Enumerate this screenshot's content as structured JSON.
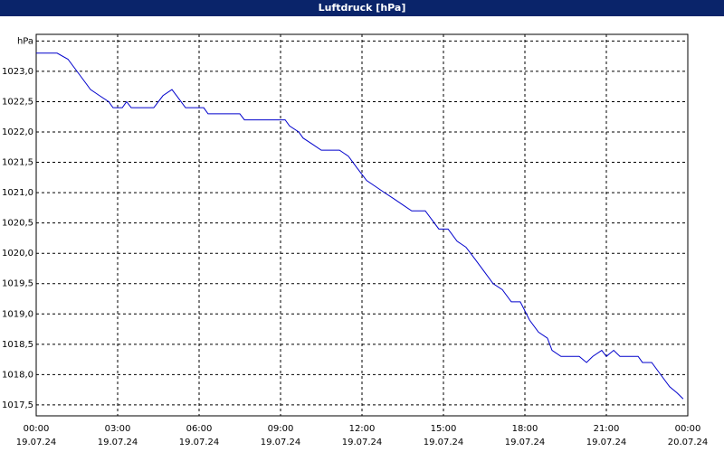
{
  "chart_data": {
    "type": "line",
    "title": "Luftdruck [hPa]",
    "x": [
      0,
      0.77,
      1.17,
      1.67,
      2,
      2.33,
      2.67,
      2.83,
      3.17,
      3.33,
      3.5,
      4.33,
      4.67,
      5,
      5.17,
      5.5,
      6.17,
      6.33,
      7.5,
      7.67,
      9.17,
      9.33,
      9.67,
      9.83,
      10.17,
      10.5,
      11.17,
      11.5,
      11.83,
      12.17,
      12.5,
      12.83,
      13.17,
      13.5,
      13.83,
      14.33,
      14.83,
      15.17,
      15.5,
      15.83,
      16.17,
      16.5,
      16.83,
      17.17,
      17.5,
      17.83,
      18.17,
      18.5,
      18.83,
      19,
      19.33,
      20,
      20.27,
      20.5,
      20.83,
      21,
      21.27,
      21.5,
      22.17,
      22.33,
      22.67,
      23,
      23.33,
      23.6,
      23.83
    ],
    "series": [
      {
        "color": "#0000cc",
        "values": [
          1023.3,
          1023.3,
          1023.2,
          1022.9,
          1022.7,
          1022.6,
          1022.5,
          1022.4,
          1022.4,
          1022.5,
          1022.4,
          1022.4,
          1022.6,
          1022.7,
          1022.6,
          1022.4,
          1022.4,
          1022.3,
          1022.3,
          1022.2,
          1022.2,
          1022.1,
          1022.0,
          1021.9,
          1021.8,
          1021.7,
          1021.7,
          1021.6,
          1021.4,
          1021.2,
          1021.1,
          1021.0,
          1020.9,
          1020.8,
          1020.7,
          1020.7,
          1020.4,
          1020.4,
          1020.2,
          1020.1,
          1019.9,
          1019.7,
          1019.5,
          1019.4,
          1019.2,
          1019.2,
          1018.9,
          1018.7,
          1018.6,
          1018.4,
          1018.3,
          1018.3,
          1018.2,
          1018.3,
          1018.4,
          1018.3,
          1018.4,
          1018.3,
          1018.3,
          1018.2,
          1018.2,
          1018.0,
          1017.8,
          1017.7,
          1017.6
        ]
      }
    ],
    "xlim": [
      0,
      24
    ],
    "xticks": [
      {
        "value": 0,
        "label": "00:00"
      },
      {
        "value": 3,
        "label": "03:00"
      },
      {
        "value": 6,
        "label": "06:00"
      },
      {
        "value": 9,
        "label": "09:00"
      },
      {
        "value": 12,
        "label": "12:00"
      },
      {
        "value": 15,
        "label": "15:00"
      },
      {
        "value": 18,
        "label": "18:00"
      },
      {
        "value": 21,
        "label": "21:00"
      },
      {
        "value": 24,
        "label": "00:00"
      }
    ],
    "xtick_dates": [
      "19.07.24",
      "19.07.24",
      "19.07.24",
      "19.07.24",
      "19.07.24",
      "19.07.24",
      "19.07.24",
      "19.07.24",
      "20.07.24"
    ],
    "ylim": [
      1017.32,
      1023.61
    ],
    "yticks": [
      {
        "value": 1017.5,
        "label": "1017,5"
      },
      {
        "value": 1018,
        "label": "1018,0"
      },
      {
        "value": 1018.5,
        "label": "1018,5"
      },
      {
        "value": 1019,
        "label": "1019,0"
      },
      {
        "value": 1019.5,
        "label": "1019,5"
      },
      {
        "value": 1020,
        "label": "1020,0"
      },
      {
        "value": 1020.5,
        "label": "1020,5"
      },
      {
        "value": 1021,
        "label": "1021,0"
      },
      {
        "value": 1021.5,
        "label": "1021,5"
      },
      {
        "value": 1022,
        "label": "1022,0"
      },
      {
        "value": 1022.5,
        "label": "1022,5"
      },
      {
        "value": 1023,
        "label": "1023,0"
      },
      {
        "value": 1023.5,
        "label": "hPa"
      }
    ],
    "grid": true
  }
}
